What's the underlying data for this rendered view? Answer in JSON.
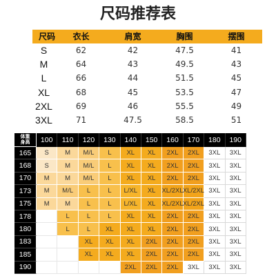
{
  "title": "尺码推荐表",
  "size_table": {
    "headers": [
      "尺码",
      "衣长",
      "肩宽",
      "胸围",
      "摆围"
    ],
    "rows": [
      [
        "S",
        "62",
        "42",
        "47.5",
        "41"
      ],
      [
        "M",
        "64",
        "43",
        "49.5",
        "43"
      ],
      [
        "L",
        "66",
        "44",
        "51.5",
        "45"
      ],
      [
        "XL",
        "68",
        "45",
        "53.5",
        "47"
      ],
      [
        "2XL",
        "69",
        "46",
        "55.5",
        "49"
      ],
      [
        "3XL",
        "71",
        "47.5",
        "58.5",
        "51"
      ]
    ]
  },
  "recommend": {
    "corner_top": "体重",
    "corner_bottom": "身高",
    "weights": [
      "100",
      "110",
      "120",
      "130",
      "140",
      "150",
      "160",
      "170",
      "180",
      "190"
    ],
    "heights": [
      "165",
      "168",
      "170",
      "173",
      "175",
      "178",
      "180",
      "183",
      "185",
      "190"
    ],
    "cells": [
      [
        "S",
        "M",
        "M/L",
        "L",
        "XL",
        "XL",
        "2XL",
        "2XL",
        "3XL",
        "3XL"
      ],
      [
        "S",
        "M",
        "M/L",
        "L",
        "XL",
        "XL",
        "2XL",
        "2XL",
        "3XL",
        "3XL"
      ],
      [
        "M",
        "M",
        "M/L",
        "L",
        "XL",
        "XL",
        "2XL",
        "2XL",
        "3XL",
        "3XL"
      ],
      [
        "M",
        "M/L",
        "L",
        "L",
        "L/XL",
        "XL",
        "XL/2XL",
        "XL/2XL",
        "3XL",
        "3XL"
      ],
      [
        "M",
        "M",
        "L",
        "L",
        "L/XL",
        "XL",
        "XL/2XL",
        "XL/2XL",
        "3XL",
        "3XL"
      ],
      [
        "",
        "L",
        "L",
        "L",
        "XL",
        "XL",
        "2XL",
        "2XL",
        "3XL",
        "3XL"
      ],
      [
        "",
        "L",
        "L",
        "XL",
        "XL",
        "XL",
        "2XL",
        "2XL",
        "3XL",
        "3XL"
      ],
      [
        "",
        "",
        "XL",
        "XL",
        "XL",
        "2XL",
        "2XL",
        "2XL",
        "3XL",
        "3XL"
      ],
      [
        "",
        "",
        "XL",
        "XL",
        "XL",
        "2XL",
        "2XL",
        "2XL",
        "3XL",
        "3XL"
      ],
      [
        "",
        "",
        "",
        "",
        "2XL",
        "2XL",
        "2XL",
        "3XL",
        "3XL",
        "3XL"
      ]
    ],
    "colors": {
      "S": "#fbe7c6",
      "M": "#fbd89a",
      "M/L": "#f9cc78",
      "L": "#f8c04c",
      "L/XL": "#f6b42a",
      "XL": "#f4ab1e",
      "XL/2XL": "#f3a41a",
      "2XL": "#f19f1f",
      "3XL": "#ffffff"
    }
  },
  "colors": {
    "accent": "#f4ab1e",
    "header_black": "#000000"
  }
}
